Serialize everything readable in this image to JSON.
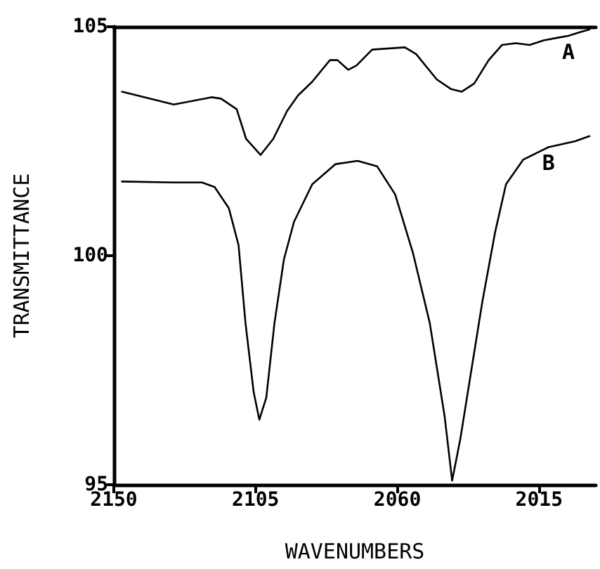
{
  "chart_data": {
    "type": "line",
    "xlabel": "WAVENUMBERS",
    "ylabel": "TRANSMITTANCE",
    "xlim": [
      2150,
      1997
    ],
    "xticks": [
      2150,
      2105,
      2060,
      2015
    ],
    "ylim": [
      95,
      105
    ],
    "yticks": [
      95,
      100,
      105
    ],
    "grid": false,
    "legend": false,
    "marker": "none",
    "line_style": "solid",
    "series": [
      {
        "name": "A",
        "color": "#000000",
        "x": [
          2147.4,
          2131,
          2119,
          2116,
          2111,
          2108,
          2103.4,
          2099.4,
          2095,
          2091.5,
          2087,
          2081.4,
          2079,
          2075.6,
          2073,
          2068,
          2057.6,
          2054,
          2047.5,
          2043,
          2039.6,
          2035.6,
          2031,
          2026.8,
          2022.4,
          2018,
          2013.6,
          2009,
          2005.7,
          2002,
          1999
        ],
        "values": [
          103.58,
          103.3,
          103.46,
          103.43,
          103.2,
          102.55,
          102.2,
          102.55,
          103.16,
          103.5,
          103.8,
          104.27,
          104.27,
          104.06,
          104.15,
          104.5,
          104.55,
          104.4,
          103.85,
          103.64,
          103.58,
          103.76,
          104.27,
          104.6,
          104.64,
          104.6,
          104.7,
          104.76,
          104.8,
          104.88,
          104.94
        ]
      },
      {
        "name": "B",
        "color": "#000000",
        "x": [
          2147.4,
          2131,
          2122,
          2118,
          2113.5,
          2110.4,
          2108.2,
          2105.6,
          2103.8,
          2101.6,
          2099,
          2096,
          2092.8,
          2087,
          2079.6,
          2072.6,
          2066.4,
          2060.7,
          2055,
          2049.7,
          2045,
          2042.6,
          2040,
          2036.5,
          2033,
          2029,
          2025.5,
          2020,
          2012,
          2003.5,
          1999
        ],
        "values": [
          101.62,
          101.6,
          101.6,
          101.5,
          101.04,
          100.23,
          98.53,
          97.02,
          96.42,
          96.9,
          98.53,
          99.92,
          100.74,
          101.56,
          102.0,
          102.07,
          101.95,
          101.34,
          100.05,
          98.53,
          96.5,
          95.09,
          96.0,
          97.5,
          99.0,
          100.5,
          101.56,
          102.1,
          102.37,
          102.5,
          102.61
        ]
      }
    ]
  }
}
